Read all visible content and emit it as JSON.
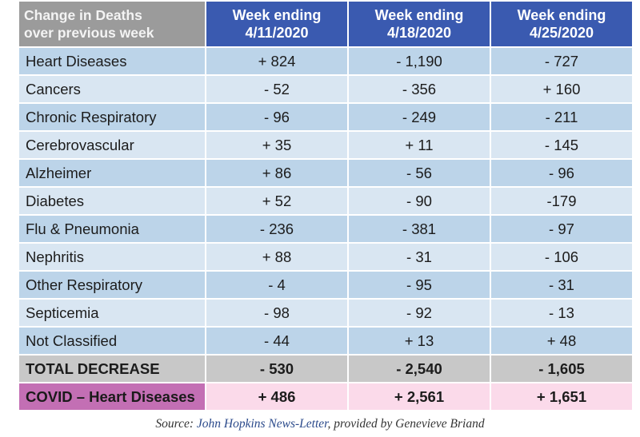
{
  "chart_data": {
    "type": "table",
    "columns": [
      "Change in Deaths over previous week",
      "Week ending 4/11/2020",
      "Week ending 4/18/2020",
      "Week ending 4/25/2020"
    ],
    "rows": [
      [
        "Heart Diseases",
        "+ 824",
        "- 1,190",
        "- 727"
      ],
      [
        "Cancers",
        "- 52",
        "- 356",
        "+ 160"
      ],
      [
        "Chronic Respiratory",
        "- 96",
        "- 249",
        "- 211"
      ],
      [
        "Cerebrovascular",
        "+ 35",
        "+ 11",
        "- 145"
      ],
      [
        "Alzheimer",
        "+ 86",
        "- 56",
        "- 96"
      ],
      [
        "Diabetes",
        "+ 52",
        "- 90",
        "-179"
      ],
      [
        "Flu & Pneumonia",
        "- 236",
        "- 381",
        "- 97"
      ],
      [
        "Nephritis",
        "+ 88",
        "- 31",
        "- 106"
      ],
      [
        "Other Respiratory",
        "- 4",
        "- 95",
        "- 31"
      ],
      [
        "Septicemia",
        "- 98",
        "- 92",
        "- 13"
      ],
      [
        "Not Classified",
        "- 44",
        "+ 13",
        "+ 48"
      ],
      [
        "TOTAL DECREASE",
        "- 530",
        "- 2,540",
        "- 1,605"
      ],
      [
        "COVID – Heart Diseases",
        "+ 486",
        "+ 2,561",
        "+ 1,651"
      ]
    ]
  },
  "header": {
    "corner_line1": "Change in Deaths",
    "corner_line2": "over previous week",
    "week_label": "Week ending",
    "week_dates": [
      "4/11/2020",
      "4/18/2020",
      "4/25/2020"
    ]
  },
  "source": {
    "prefix": "Source: ",
    "publication": "John Hopkins News-Letter",
    "suffix": ", provided by Genevieve Briand"
  },
  "colors": {
    "header_blue": "#3a5ab0",
    "header_gray": "#9b9b9b",
    "row_blue_dark": "#bcd4e9",
    "row_blue_light": "#d9e6f2",
    "total_gray": "#c8c8c8",
    "covid_pink": "#fbdaea",
    "covid_label": "#c36fb4"
  }
}
